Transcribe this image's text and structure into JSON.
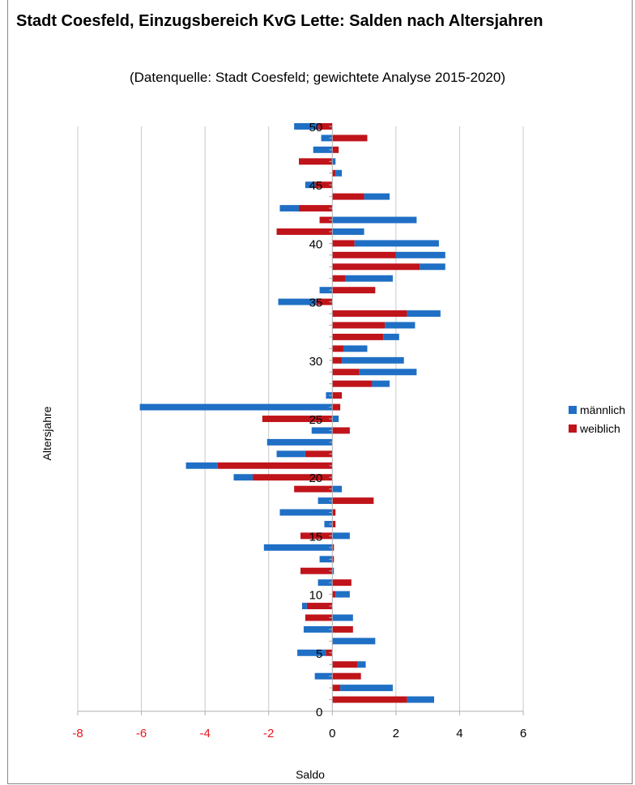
{
  "title": "Stadt Coesfeld, Einzugsbereich KvG Lette: Salden nach Altersjahren",
  "subtitle": "(Datenquelle: Stadt Coesfeld; gewichtete Analyse 2015-2020)",
  "colors": {
    "maennlich": "#1f6fc5",
    "weiblich": "#c0141b",
    "grid": "#c8c8c8",
    "xtick_negative": "#e8161e"
  },
  "chart_data": {
    "type": "bar",
    "orientation": "horizontal",
    "stacked": true,
    "xlabel": "Saldo",
    "ylabel": "Altersjahre",
    "xlim": [
      -8,
      6
    ],
    "x_ticks": [
      "-8",
      "-6",
      "-4",
      "-2",
      "0",
      "2",
      "4",
      "6"
    ],
    "ylim": [
      0,
      50
    ],
    "y_ticks": [
      "0",
      "5",
      "10",
      "15",
      "20",
      "25",
      "30",
      "35",
      "40",
      "45",
      "50"
    ],
    "grid": true,
    "legend_position": "right",
    "categories": [
      1,
      2,
      3,
      4,
      5,
      6,
      7,
      8,
      9,
      10,
      11,
      12,
      13,
      14,
      15,
      16,
      17,
      18,
      19,
      20,
      21,
      22,
      23,
      24,
      25,
      26,
      27,
      28,
      29,
      30,
      31,
      32,
      33,
      34,
      35,
      36,
      37,
      38,
      39,
      40,
      41,
      42,
      43,
      44,
      45,
      46,
      47,
      48,
      49,
      50
    ],
    "series": [
      {
        "name": "männlich",
        "values": [
          0.85,
          1.65,
          -0.55,
          0.25,
          -0.9,
          1.35,
          -0.9,
          0.65,
          -0.15,
          0.45,
          -0.45,
          0.05,
          -0.4,
          -2.15,
          0.55,
          -0.25,
          -1.65,
          -0.45,
          0.3,
          -0.6,
          -1.0,
          -0.9,
          -2.05,
          -0.65,
          0.2,
          -6.05,
          -0.2,
          0.55,
          1.8,
          1.95,
          0.75,
          0.5,
          0.95,
          1.05,
          -1.2,
          -0.4,
          1.5,
          0.8,
          1.55,
          2.65,
          1.0,
          2.65,
          -0.6,
          0.8,
          -0.3,
          0.2,
          0.1,
          -0.6,
          -0.35,
          -0.75
        ]
      },
      {
        "name": "weiblich",
        "values": [
          2.35,
          0.25,
          0.9,
          0.8,
          -0.2,
          0.0,
          0.65,
          -0.85,
          -0.8,
          0.1,
          0.6,
          -1.0,
          0.05,
          0.05,
          -1.0,
          0.1,
          0.1,
          1.3,
          -1.2,
          -2.5,
          -3.6,
          -0.85,
          0.0,
          0.55,
          -2.2,
          0.25,
          0.3,
          1.25,
          0.85,
          0.3,
          0.35,
          1.6,
          1.65,
          2.35,
          -0.5,
          1.35,
          0.4,
          2.75,
          2.0,
          0.7,
          -1.75,
          -0.4,
          -1.05,
          1.0,
          -0.55,
          0.1,
          -1.05,
          0.2,
          1.1,
          -0.45
        ]
      }
    ]
  }
}
